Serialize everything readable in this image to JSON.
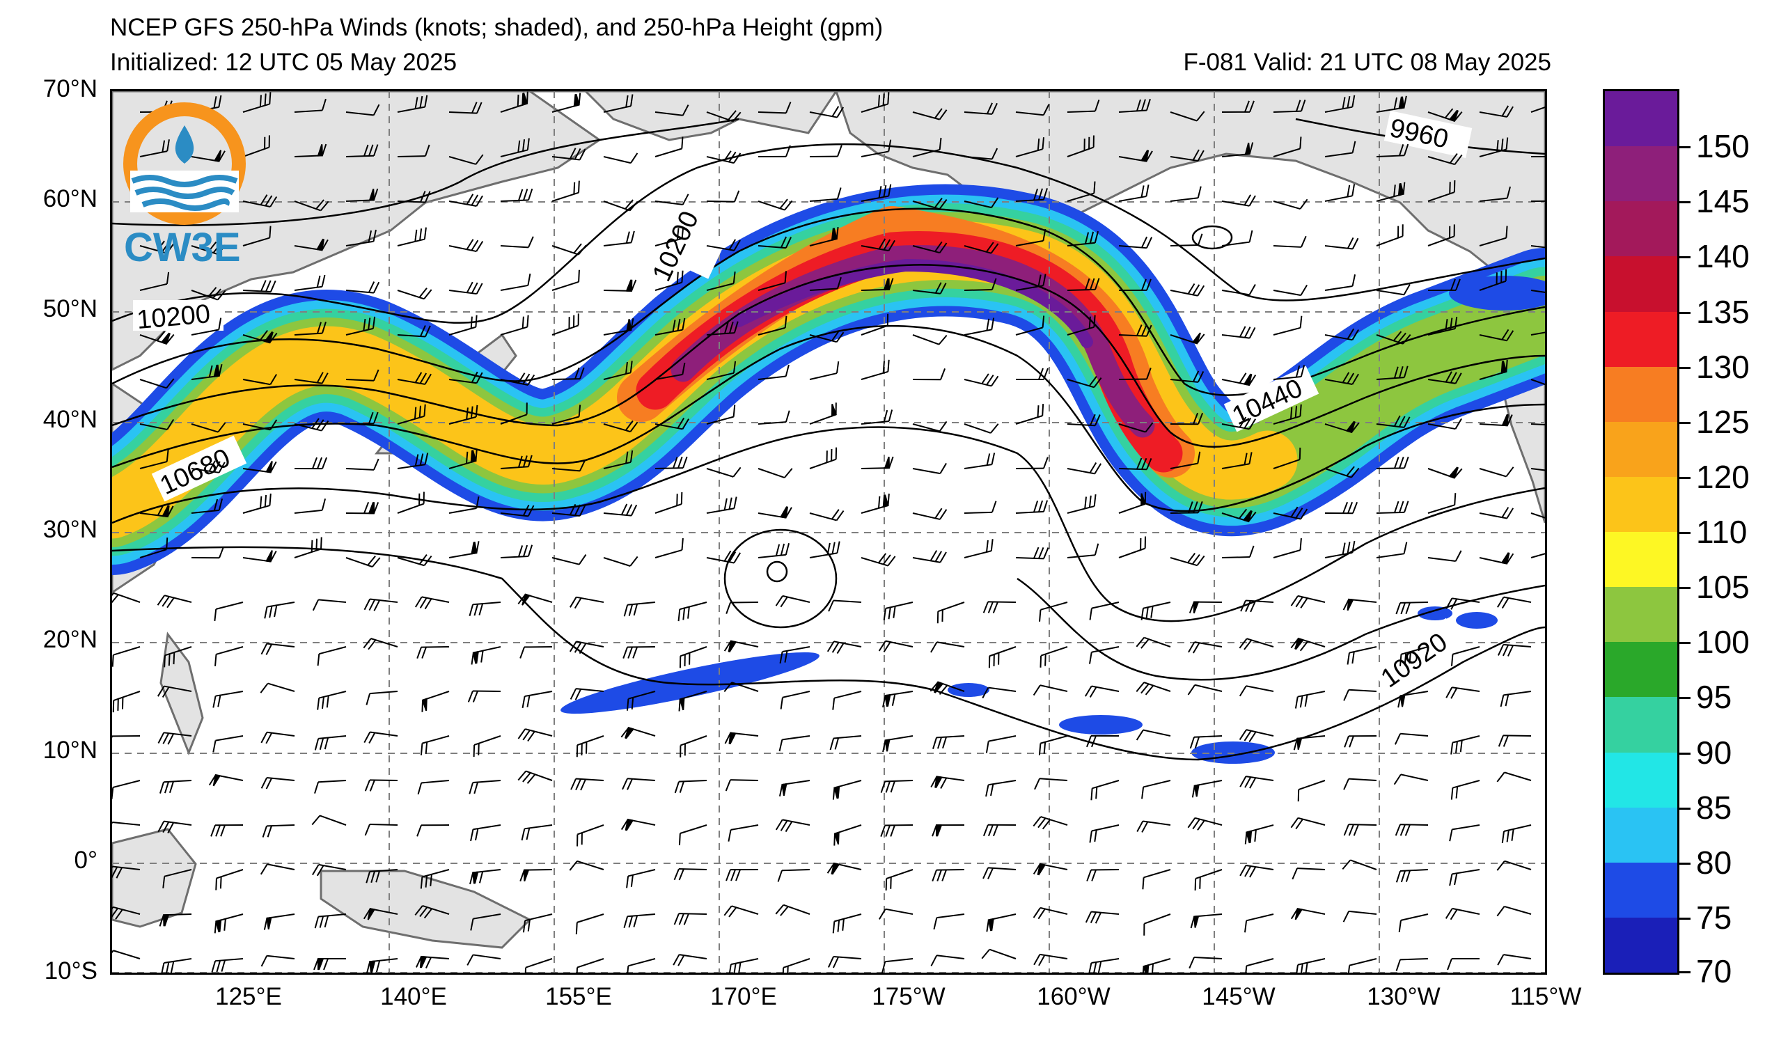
{
  "title": {
    "main": "NCEP GFS 250-hPa Winds (knots; shaded), and 250-hPa Height (gpm)",
    "initialized": "Initialized: 12 UTC 05 May 2025",
    "valid": "F-081  Valid: 21 UTC 08 May 2025"
  },
  "logo": {
    "text": "CW3E",
    "colors": {
      "ring": "#f7941d",
      "waves": "#2b8cc4",
      "text": "#2b8cc4"
    }
  },
  "axes": {
    "lat_labels": [
      "70°N",
      "60°N",
      "50°N",
      "40°N",
      "30°N",
      "20°N",
      "10°N",
      "0°",
      "10°S"
    ],
    "lon_labels": [
      "125°E",
      "140°E",
      "155°E",
      "170°E",
      "175°W",
      "160°W",
      "145°W",
      "130°W",
      "115°W"
    ]
  },
  "contour_labels": [
    "10200",
    "10200",
    "9960",
    "10680",
    "10440",
    "10920"
  ],
  "colorbar": {
    "labels": [
      "150",
      "145",
      "140",
      "135",
      "130",
      "125",
      "120",
      "110",
      "105",
      "100",
      "95",
      "90",
      "85",
      "80",
      "75",
      "70"
    ],
    "colors": [
      "#6a1b9a",
      "#8e1f7a",
      "#a3195b",
      "#c8102e",
      "#ee1c25",
      "#f77d22",
      "#f9a31b",
      "#fcc419",
      "#fdf724",
      "#8dc63f",
      "#2aa82a",
      "#35d1a0",
      "#22e6e6",
      "#2ac3f3",
      "#1e4be6",
      "#1a1fb8"
    ]
  },
  "colors": {
    "land": "#e3e3e3",
    "coast": "#6e6e6e",
    "grid": "#7f7f7f",
    "contour": "#000000"
  }
}
